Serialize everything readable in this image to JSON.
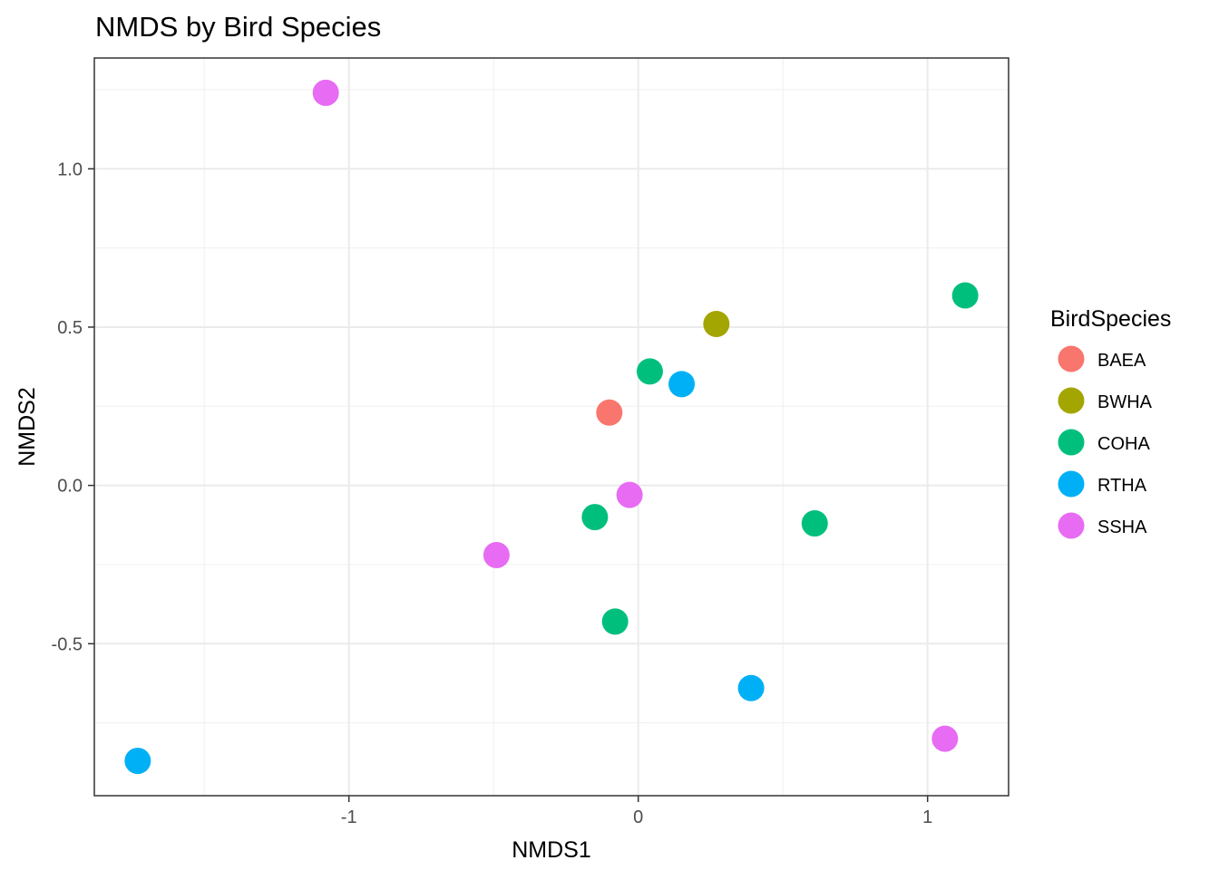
{
  "chart_data": {
    "type": "scatter",
    "title": "NMDS by Bird Species",
    "xlabel": "NMDS1",
    "ylabel": "NMDS2",
    "xlim": [
      -1.88,
      1.28
    ],
    "ylim": [
      -0.98,
      1.35
    ],
    "x_ticks": [
      -1,
      0,
      1
    ],
    "x_tick_labels": [
      "-1",
      "0",
      "1"
    ],
    "y_ticks": [
      -0.5,
      0.0,
      0.5,
      1.0
    ],
    "y_tick_labels": [
      "-0.5",
      "0.0",
      "0.5",
      "1.0"
    ],
    "grid": true,
    "legend": {
      "title": "BirdSpecies",
      "position": "right"
    },
    "series": [
      {
        "name": "BAEA",
        "color": "#F8766D",
        "points": [
          [
            -0.1,
            0.23
          ]
        ]
      },
      {
        "name": "BWHA",
        "color": "#A3A500",
        "points": [
          [
            0.27,
            0.51
          ]
        ]
      },
      {
        "name": "COHA",
        "color": "#00BF7D",
        "points": [
          [
            0.04,
            0.36
          ],
          [
            -0.15,
            -0.1
          ],
          [
            -0.08,
            -0.43
          ],
          [
            0.61,
            -0.12
          ],
          [
            1.13,
            0.6
          ]
        ]
      },
      {
        "name": "RTHA",
        "color": "#00B0F6",
        "points": [
          [
            0.15,
            0.32
          ],
          [
            0.39,
            -0.64
          ],
          [
            -1.73,
            -0.87
          ]
        ]
      },
      {
        "name": "SSHA",
        "color": "#E76BF3",
        "points": [
          [
            -1.08,
            1.24
          ],
          [
            -0.03,
            -0.03
          ],
          [
            -0.49,
            -0.22
          ],
          [
            1.06,
            -0.8
          ]
        ]
      }
    ]
  }
}
